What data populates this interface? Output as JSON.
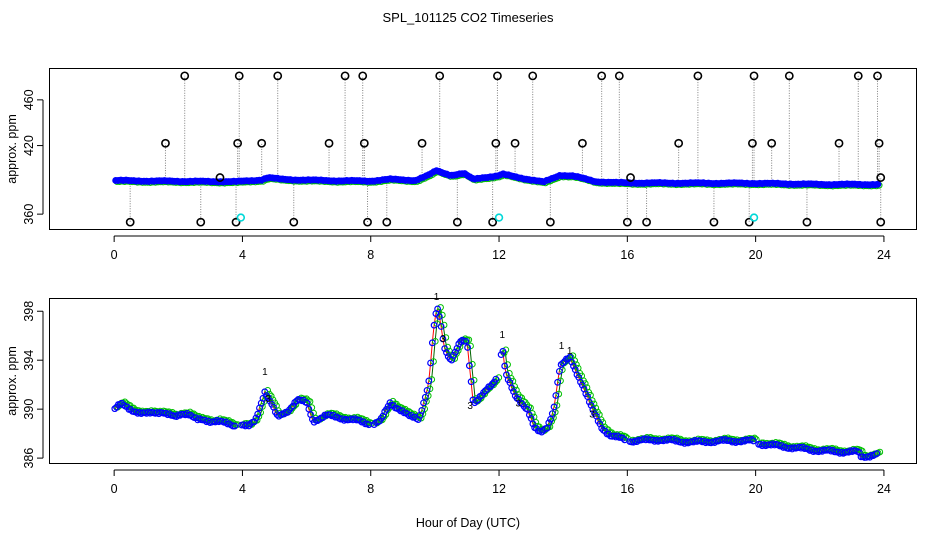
{
  "chart_data": {
    "title": "SPL_101125  CO2 Timeseries",
    "xlabel": "Hour of Day (UTC)",
    "colors": {
      "raw": "#000000",
      "fill": "#0000ff",
      "ring": "#00c000",
      "line": "#ff0000",
      "cal": "#00d8d8",
      "stem": "#808080"
    },
    "panels": [
      {
        "type": "scatter",
        "ylabel": "approx. ppm",
        "xlim": [
          -2,
          25
        ],
        "ylim": [
          347,
          487
        ],
        "xticks": [
          0,
          4,
          8,
          12,
          16,
          20,
          24
        ],
        "yticks": [
          360,
          420,
          460
        ],
        "base": [
          [
            0,
            389.5
          ],
          [
            1,
            389
          ],
          [
            2,
            388.8
          ],
          [
            3,
            388.5
          ],
          [
            3.9,
            388.5
          ],
          [
            4.6,
            390
          ],
          [
            4.8,
            392
          ],
          [
            5.2,
            390.5
          ],
          [
            5.7,
            390
          ],
          [
            6,
            389.8
          ],
          [
            7,
            389.2
          ],
          [
            8,
            389
          ],
          [
            8.6,
            390.5
          ],
          [
            9.4,
            389.5
          ],
          [
            9.8,
            394
          ],
          [
            10.05,
            398
          ],
          [
            10.5,
            394
          ],
          [
            10.9,
            395.5
          ],
          [
            11.2,
            390.5
          ],
          [
            11.5,
            392
          ],
          [
            12,
            393.5
          ],
          [
            12.1,
            395
          ],
          [
            12.8,
            391
          ],
          [
            13.4,
            388
          ],
          [
            13.9,
            394
          ],
          [
            14.3,
            393.5
          ],
          [
            15,
            388.5
          ],
          [
            15.7,
            387.5
          ],
          [
            16,
            387.3
          ],
          [
            20,
            387
          ],
          [
            22,
            386
          ],
          [
            23.7,
            386
          ]
        ],
        "spikes_up": [
          [
            1.6,
            422
          ],
          [
            2.2,
            481
          ],
          [
            3.3,
            392
          ],
          [
            3.85,
            422
          ],
          [
            3.9,
            481
          ],
          [
            4.6,
            422
          ],
          [
            5.1,
            481
          ],
          [
            6.7,
            422
          ],
          [
            7.2,
            481
          ],
          [
            7.75,
            481
          ],
          [
            7.8,
            422
          ],
          [
            9.6,
            422
          ],
          [
            10.15,
            481
          ],
          [
            11.9,
            422
          ],
          [
            11.95,
            481
          ],
          [
            12.5,
            422
          ],
          [
            13.05,
            481
          ],
          [
            14.6,
            422
          ],
          [
            15.2,
            481
          ],
          [
            15.75,
            481
          ],
          [
            16.1,
            392
          ],
          [
            17.6,
            422
          ],
          [
            18.2,
            481
          ],
          [
            19.9,
            422
          ],
          [
            19.95,
            481
          ],
          [
            20.5,
            422
          ],
          [
            21.05,
            481
          ],
          [
            22.6,
            422
          ],
          [
            23.2,
            481
          ],
          [
            23.8,
            481
          ],
          [
            23.85,
            422
          ],
          [
            23.9,
            392
          ]
        ],
        "spikes_down": [
          [
            0.5,
            353
          ],
          [
            2.7,
            353
          ],
          [
            3.8,
            353
          ],
          [
            5.6,
            353
          ],
          [
            7.9,
            353
          ],
          [
            8.5,
            353
          ],
          [
            10.7,
            353
          ],
          [
            11.8,
            353
          ],
          [
            13.6,
            353
          ],
          [
            16.0,
            353
          ],
          [
            16.6,
            353
          ],
          [
            18.7,
            353
          ],
          [
            19.8,
            353
          ],
          [
            21.6,
            353
          ],
          [
            23.9,
            353
          ]
        ],
        "cal_points": [
          [
            3.95,
            357
          ],
          [
            12.0,
            357
          ],
          [
            19.95,
            357
          ]
        ]
      },
      {
        "type": "scatter",
        "ylabel": "approx. ppm",
        "xlim": [
          -2,
          25
        ],
        "ylim": [
          385.6,
          399.0
        ],
        "xticks": [
          0,
          4,
          8,
          12,
          16,
          20,
          24
        ],
        "yticks": [
          386,
          390,
          394,
          398
        ],
        "gaps": [
          [
            3.8,
            3.95
          ],
          [
            7.95,
            8.05
          ],
          [
            11.95,
            12.05
          ],
          [
            15.95,
            16.05
          ],
          [
            19.95,
            20.05
          ]
        ],
        "knots": [
          [
            0,
            390
          ],
          [
            0.2,
            390.4
          ],
          [
            0.5,
            390
          ],
          [
            0.8,
            389.7
          ],
          [
            1.0,
            389.6
          ],
          [
            1.5,
            389.8
          ],
          [
            1.9,
            389.3
          ],
          [
            2.1,
            389.6
          ],
          [
            2.3,
            389.7
          ],
          [
            2.6,
            389.1
          ],
          [
            3.0,
            389
          ],
          [
            3.2,
            389.1
          ],
          [
            3.6,
            388.7
          ],
          [
            3.8,
            388.6
          ],
          [
            3.95,
            388.8
          ],
          [
            4.2,
            388.6
          ],
          [
            4.4,
            389
          ],
          [
            4.7,
            391.5
          ],
          [
            4.9,
            390.5
          ],
          [
            5.1,
            389.3
          ],
          [
            5.4,
            389.8
          ],
          [
            5.7,
            390.8
          ],
          [
            6.0,
            390.5
          ],
          [
            6.2,
            389
          ],
          [
            6.6,
            389.5
          ],
          [
            7.0,
            389.3
          ],
          [
            7.5,
            389.1
          ],
          [
            7.95,
            388.8
          ],
          [
            8.05,
            388.8
          ],
          [
            8.3,
            389
          ],
          [
            8.6,
            390.5
          ],
          [
            8.9,
            390
          ],
          [
            9.2,
            389.4
          ],
          [
            9.5,
            389.2
          ],
          [
            9.8,
            392
          ],
          [
            10.0,
            397.5
          ],
          [
            10.1,
            398.2
          ],
          [
            10.3,
            395
          ],
          [
            10.5,
            394
          ],
          [
            10.8,
            395.5
          ],
          [
            11.0,
            395.5
          ],
          [
            11.2,
            390.5
          ],
          [
            11.4,
            391
          ],
          [
            11.6,
            391.5
          ],
          [
            11.8,
            392
          ],
          [
            12.0,
            393
          ],
          [
            12.1,
            395.3
          ],
          [
            12.2,
            393
          ],
          [
            12.5,
            391
          ],
          [
            12.9,
            390
          ],
          [
            13.1,
            388.5
          ],
          [
            13.3,
            388
          ],
          [
            13.5,
            388.5
          ],
          [
            13.7,
            390
          ],
          [
            13.9,
            393.5
          ],
          [
            14.2,
            394.2
          ],
          [
            14.6,
            392
          ],
          [
            14.9,
            390
          ],
          [
            15.2,
            388.5
          ],
          [
            15.5,
            387.8
          ],
          [
            15.95,
            387.5
          ],
          [
            16.05,
            387.4
          ],
          [
            17,
            387.5
          ],
          [
            18,
            387.3
          ],
          [
            19,
            387.4
          ],
          [
            19.95,
            387.4
          ],
          [
            20.05,
            387.2
          ],
          [
            21,
            386.9
          ],
          [
            22,
            386.6
          ],
          [
            22.8,
            386.5
          ],
          [
            23.2,
            386.5
          ],
          [
            23.3,
            386.1
          ],
          [
            23.8,
            386.3
          ]
        ]
      }
    ]
  }
}
